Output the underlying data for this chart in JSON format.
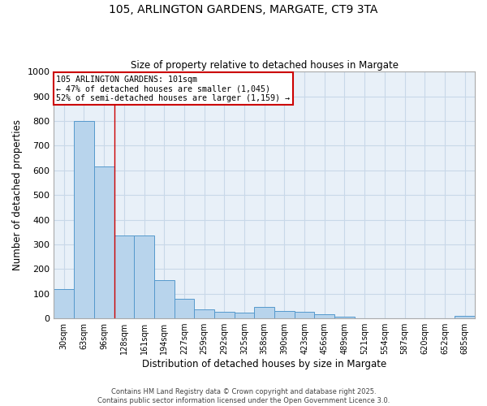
{
  "title1": "105, ARLINGTON GARDENS, MARGATE, CT9 3TA",
  "title2": "Size of property relative to detached houses in Margate",
  "xlabel": "Distribution of detached houses by size in Margate",
  "ylabel": "Number of detached properties",
  "categories": [
    "30sqm",
    "63sqm",
    "96sqm",
    "128sqm",
    "161sqm",
    "194sqm",
    "227sqm",
    "259sqm",
    "292sqm",
    "325sqm",
    "358sqm",
    "390sqm",
    "423sqm",
    "456sqm",
    "489sqm",
    "521sqm",
    "554sqm",
    "587sqm",
    "620sqm",
    "652sqm",
    "685sqm"
  ],
  "values": [
    120,
    800,
    615,
    335,
    335,
    155,
    80,
    38,
    25,
    22,
    45,
    30,
    25,
    18,
    8,
    0,
    0,
    0,
    0,
    0,
    10
  ],
  "bar_color": "#b8d4ec",
  "bar_edge_color": "#5599cc",
  "grid_color": "#c8d8e8",
  "bg_color": "#e8f0f8",
  "vline_x_index": 2,
  "vline_color": "#cc0000",
  "annotation_title": "105 ARLINGTON GARDENS: 101sqm",
  "annotation_line1": "← 47% of detached houses are smaller (1,045)",
  "annotation_line2": "52% of semi-detached houses are larger (1,159) →",
  "annotation_box_color": "#cc0000",
  "ylim": [
    0,
    1000
  ],
  "yticks": [
    0,
    100,
    200,
    300,
    400,
    500,
    600,
    700,
    800,
    900,
    1000
  ],
  "footer1": "Contains HM Land Registry data © Crown copyright and database right 2025.",
  "footer2": "Contains public sector information licensed under the Open Government Licence 3.0."
}
